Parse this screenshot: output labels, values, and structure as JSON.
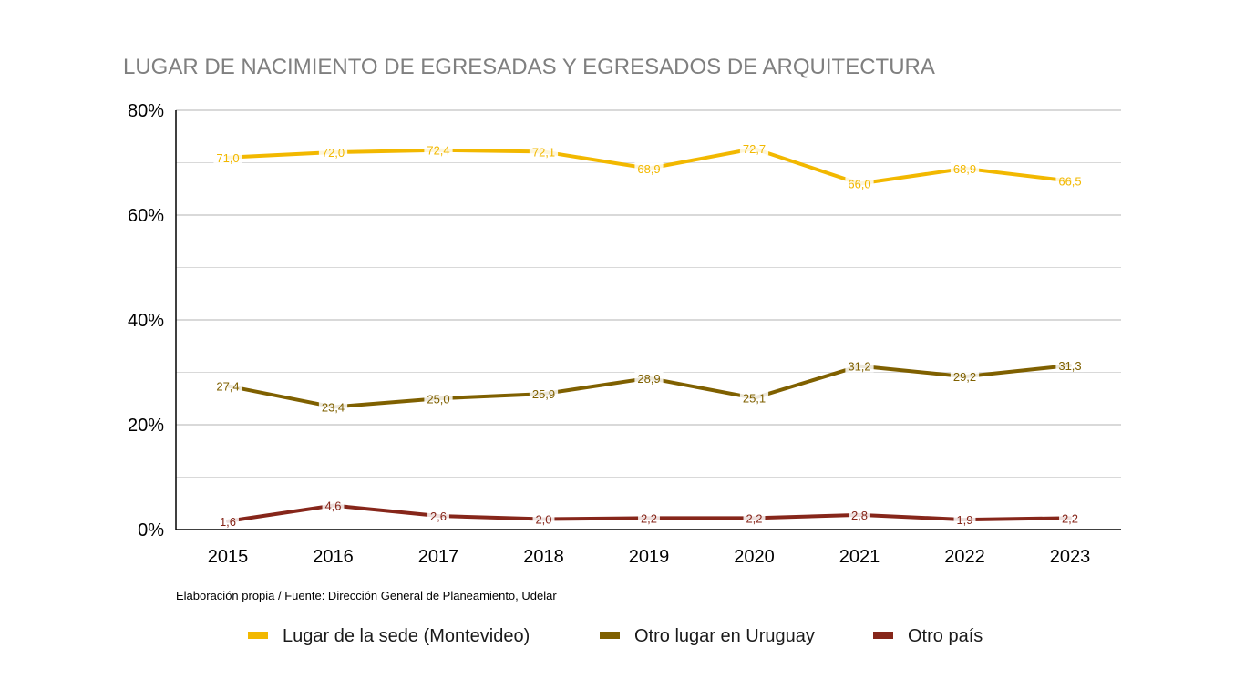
{
  "chart_data": {
    "type": "line",
    "title": "LUGAR DE NACIMIENTO DE EGRESADAS Y EGRESADOS DE ARQUITECTURA",
    "source_note": "Elaboración propia / Fuente: Dirección General de Planeamiento, Udelar",
    "x": [
      "2015",
      "2016",
      "2017",
      "2018",
      "2019",
      "2020",
      "2021",
      "2022",
      "2023"
    ],
    "ylim": [
      0,
      80
    ],
    "y_major_ticks": [
      0,
      20,
      40,
      60,
      80
    ],
    "y_tick_labels": [
      "0%",
      "20%",
      "40%",
      "60%",
      "80%"
    ],
    "y_minor_gridlines": [
      10,
      30,
      50,
      70
    ],
    "grid": true,
    "legend_position": "bottom",
    "series": [
      {
        "name": "Lugar de la sede (Montevideo)",
        "color": "#f2b800",
        "values": [
          71.0,
          72.0,
          72.4,
          72.1,
          68.9,
          72.7,
          66.0,
          68.9,
          66.5
        ],
        "labels": [
          "71,0",
          "72,0",
          "72,4",
          "72,1",
          "68,9",
          "72,7",
          "66,0",
          "68,9",
          "66,5"
        ]
      },
      {
        "name": "Otro lugar en Uruguay",
        "color": "#7f6000",
        "values": [
          27.4,
          23.4,
          25.0,
          25.9,
          28.9,
          25.1,
          31.2,
          29.2,
          31.3
        ],
        "labels": [
          "27,4",
          "23,4",
          "25,0",
          "25,9",
          "28,9",
          "25,1",
          "31,2",
          "29,2",
          "31,3"
        ]
      },
      {
        "name": "Otro país",
        "color": "#86261a",
        "values": [
          1.6,
          4.6,
          2.6,
          2.0,
          2.2,
          2.2,
          2.8,
          1.9,
          2.2
        ],
        "labels": [
          "1,6",
          "4,6",
          "2,6",
          "2,0",
          "2,2",
          "2,2",
          "2,8",
          "1,9",
          "2,2"
        ]
      }
    ]
  }
}
